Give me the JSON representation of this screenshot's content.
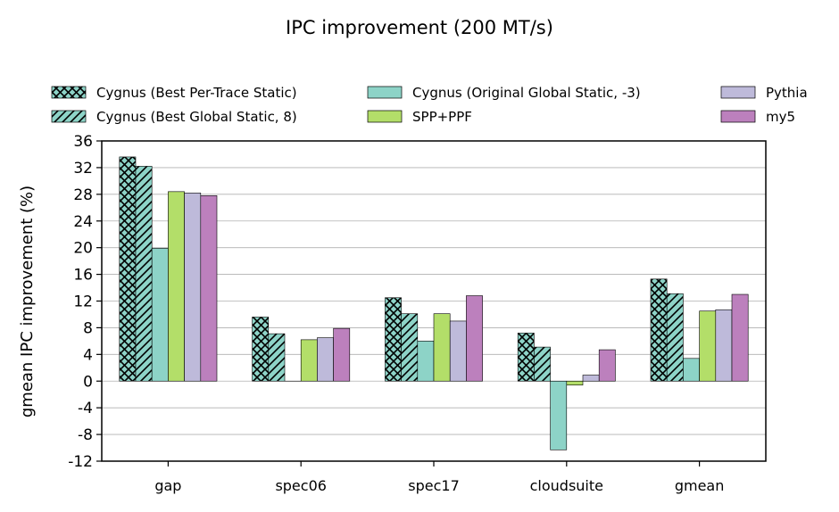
{
  "chart_data": {
    "type": "bar",
    "title": "IPC improvement (200 MT/s)",
    "xlabel": "",
    "ylabel": "gmean IPC improvement (%)",
    "ylim": [
      -12,
      36
    ],
    "yticks": [
      -12,
      -8,
      -4,
      0,
      4,
      8,
      12,
      16,
      20,
      24,
      28,
      32,
      36
    ],
    "grid": "horizontal",
    "legend_placement": "top",
    "categories": [
      "gap",
      "spec06",
      "spec17",
      "cloudsuite",
      "gmean"
    ],
    "series": [
      {
        "name": "Cygnus (Best Per-Trace Static)",
        "color": "#8dd3c7",
        "pattern": "crosshatch",
        "values": [
          33.6,
          9.6,
          12.5,
          7.2,
          15.3
        ]
      },
      {
        "name": "Cygnus (Best Global Static, 8)",
        "color": "#8dd3c7",
        "pattern": "diagonal",
        "values": [
          32.2,
          7.1,
          10.1,
          5.1,
          13.1
        ]
      },
      {
        "name": "Cygnus (Original Global Static, -3)",
        "color": "#8dd3c7",
        "pattern": "none",
        "values": [
          19.9,
          0.0,
          6.0,
          -10.3,
          3.4
        ]
      },
      {
        "name": "SPP+PPF",
        "color": "#b3de69",
        "pattern": "none",
        "values": [
          28.4,
          6.2,
          10.1,
          -0.6,
          10.5
        ]
      },
      {
        "name": "Pythia",
        "color": "#bebada",
        "pattern": "none",
        "values": [
          28.2,
          6.5,
          9.0,
          0.9,
          10.7
        ]
      },
      {
        "name": "my5",
        "color": "#bc80bd",
        "pattern": "none",
        "values": [
          27.8,
          7.9,
          12.8,
          4.7,
          13.0
        ]
      }
    ]
  }
}
